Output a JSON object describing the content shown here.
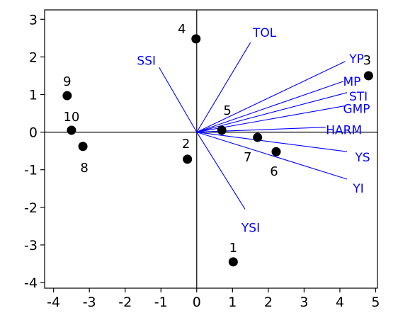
{
  "chart_data": {
    "type": "scatter",
    "subtype": "biplot",
    "title": "",
    "xlabel": "",
    "ylabel": "",
    "xlim": [
      -4.25,
      5.05
    ],
    "ylim": [
      -4.15,
      3.25
    ],
    "x_ticks": [
      -4,
      -3,
      -2,
      -1,
      0,
      1,
      2,
      3,
      4,
      5
    ],
    "y_ticks": [
      3,
      2,
      1,
      0,
      -1,
      -2,
      -3,
      -4
    ],
    "grid": false,
    "legend": "none",
    "axis_color": "#000000",
    "point_color": "#000000",
    "vector_color": "#0000ff",
    "points": [
      {
        "label": "1",
        "x": 1.02,
        "y": -3.45
      },
      {
        "label": "2",
        "x": -0.26,
        "y": -0.72
      },
      {
        "label": "3",
        "x": 4.8,
        "y": 1.5
      },
      {
        "label": "4",
        "x": -0.02,
        "y": 2.48
      },
      {
        "label": "5",
        "x": 0.7,
        "y": 0.05
      },
      {
        "label": "6",
        "x": 2.22,
        "y": -0.52
      },
      {
        "label": "7",
        "x": 1.7,
        "y": -0.14
      },
      {
        "label": "8",
        "x": -3.18,
        "y": -0.38
      },
      {
        "label": "9",
        "x": -3.62,
        "y": 0.97
      },
      {
        "label": "10",
        "x": -3.5,
        "y": 0.05
      }
    ],
    "vectors": [
      {
        "label": "TOL",
        "x": 1.5,
        "y": 2.38
      },
      {
        "label": "SSI",
        "x": -1.05,
        "y": 1.72
      },
      {
        "label": "YP",
        "x": 4.15,
        "y": 1.88
      },
      {
        "label": "MP",
        "x": 4.1,
        "y": 1.35
      },
      {
        "label": "STI",
        "x": 4.2,
        "y": 1.05
      },
      {
        "label": "GMP",
        "x": 4.15,
        "y": 0.7
      },
      {
        "label": "HARM",
        "x": 3.6,
        "y": 0.13
      },
      {
        "label": "YS",
        "x": 4.2,
        "y": -0.52
      },
      {
        "label": "YI",
        "x": 4.2,
        "y": -1.25
      },
      {
        "label": "YSI",
        "x": 1.35,
        "y": -2.05
      }
    ]
  }
}
